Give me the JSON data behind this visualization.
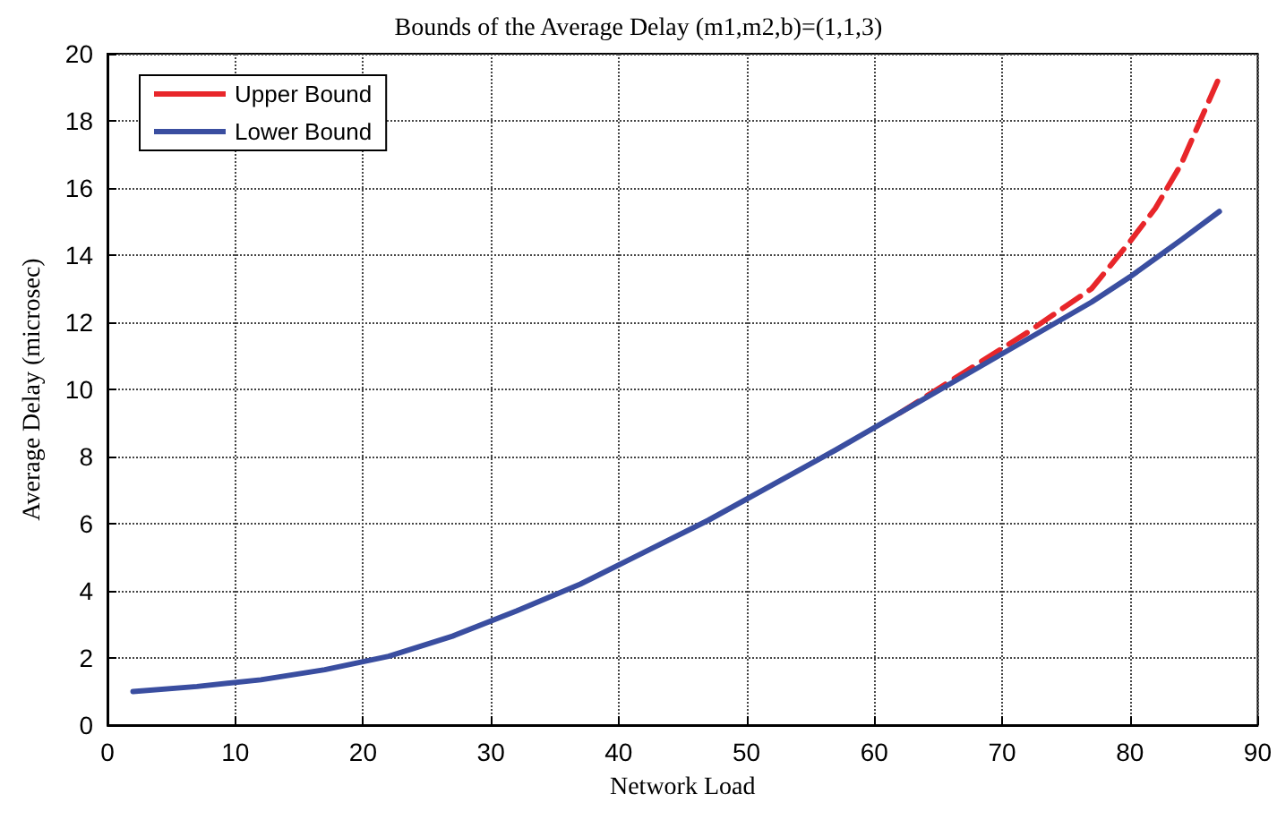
{
  "chart_data": {
    "type": "line",
    "title": "Bounds of the Average Delay (m1,m2,b)=(1,1,3)",
    "xlabel": "Network Load",
    "ylabel": "Average Delay (microsec)",
    "x": [
      2,
      7,
      12,
      17,
      22,
      27,
      32,
      37,
      42,
      47,
      52,
      57,
      62,
      67,
      72,
      77,
      80,
      82,
      84,
      87
    ],
    "series": [
      {
        "name": "Upper Bound",
        "color": "#e8262a",
        "line_style": "dashed",
        "values": [
          null,
          null,
          null,
          null,
          null,
          null,
          null,
          null,
          null,
          null,
          null,
          null,
          9.3,
          10.5,
          11.7,
          13.0,
          14.4,
          15.4,
          16.7,
          19.3
        ]
      },
      {
        "name": "Lower Bound",
        "color": "#3a4ea0",
        "line_style": "solid",
        "values": [
          1.0,
          1.15,
          1.35,
          1.65,
          2.05,
          2.65,
          3.4,
          4.2,
          5.15,
          6.1,
          7.15,
          8.2,
          9.3,
          10.4,
          11.5,
          12.6,
          13.35,
          13.9,
          14.45,
          15.3
        ]
      }
    ],
    "xlim": [
      0,
      90
    ],
    "xticks": [
      0,
      10,
      20,
      30,
      40,
      50,
      60,
      70,
      80,
      90
    ],
    "ylim": [
      0,
      20
    ],
    "yticks": [
      0,
      2,
      4,
      6,
      8,
      10,
      12,
      14,
      16,
      18,
      20
    ],
    "grid": true,
    "legend": "top left",
    "marker": "none"
  }
}
